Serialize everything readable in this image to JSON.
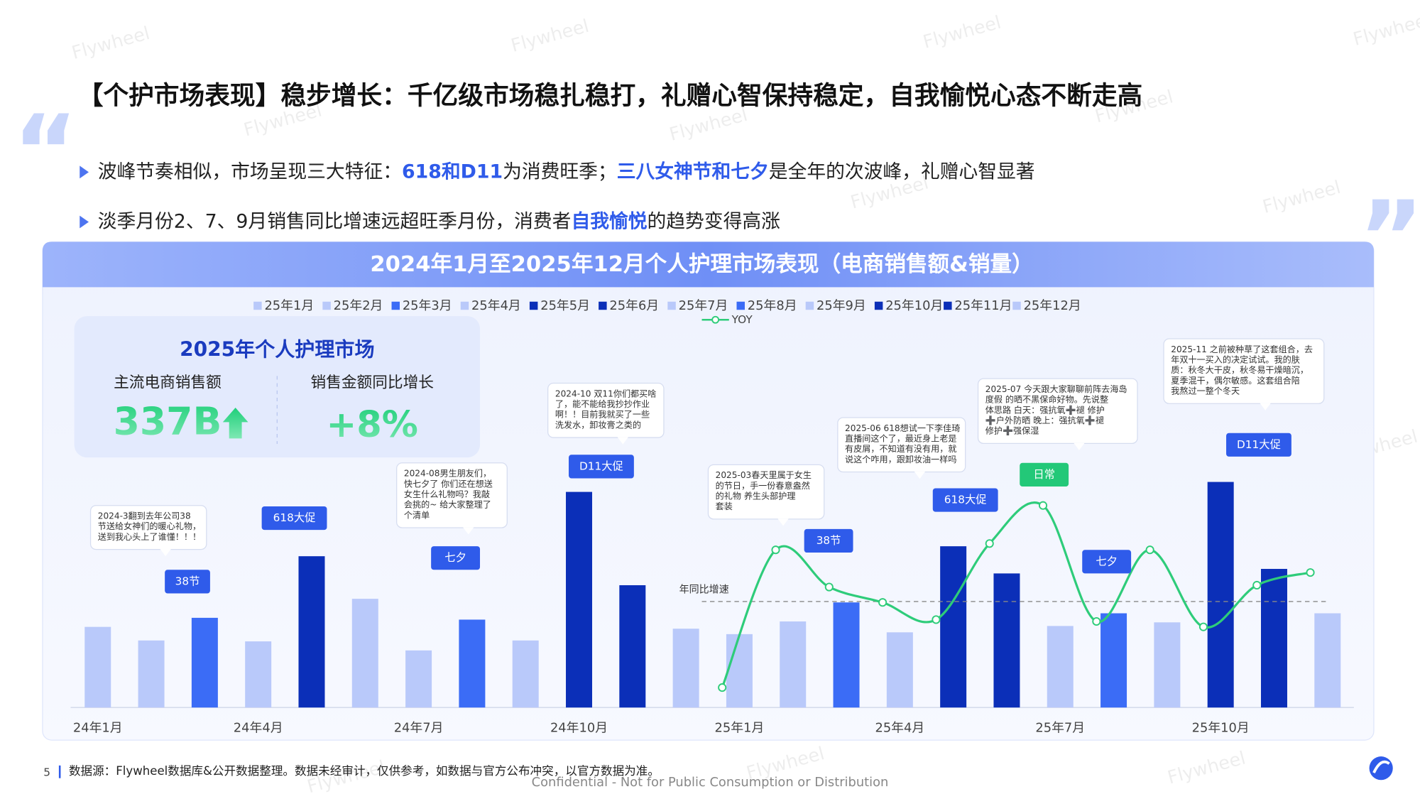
{
  "header": {
    "title": "【个护市场表现】稳步增长：千亿级市场稳扎稳打，礼赠心智保持稳定，自我愉悦心态不断走高"
  },
  "bullets": [
    [
      {
        "text": "波峰节奏相似，市场呈现三大特征："
      },
      {
        "text": "618和D11",
        "highlight": true
      },
      {
        "text": "为消费旺季；"
      },
      {
        "text": "三八女神节和七夕",
        "highlight": true
      },
      {
        "text": "是全年的次波峰，礼赠心智显著"
      }
    ],
    [
      {
        "text": "淡季月份2、7、9月销售同比增速远超旺季月份，消费者"
      },
      {
        "text": "自我愉悦",
        "highlight": true
      },
      {
        "text": "的趋势变得高涨"
      }
    ]
  ],
  "watermark": "Flywheel",
  "kpi": {
    "title": "2025年个人护理市场",
    "label1": "主流电商销售额",
    "value1": "337B",
    "label2": "销售金额同比增长",
    "value2": "+8%"
  },
  "chart_data": {
    "type": "bar",
    "title": "2024年1月至2025年12月个人护理市场表现（电商销售额&销量）",
    "categories": [
      "24年1月",
      null,
      null,
      "24年4月",
      null,
      null,
      "24年7月",
      null,
      null,
      "24年10月",
      null,
      null,
      "25年1月",
      null,
      null,
      "25年4月",
      null,
      null,
      "25年7月",
      null,
      null,
      "25年10月",
      null,
      null
    ],
    "values": [
      89,
      74,
      99,
      73,
      167,
      120,
      63,
      97,
      74,
      238,
      135,
      87,
      81,
      95,
      116,
      83,
      178,
      148,
      90,
      104,
      94,
      249,
      153,
      104
    ],
    "colors": [
      "#b9c9fa",
      "#b9c9fa",
      "#3b6cf6",
      "#b9c9fa",
      "#0b2fb8",
      "#b9c9fa",
      "#b9c9fa",
      "#3b6cf6",
      "#b9c9fa",
      "#0b2fb8",
      "#0b2fb8",
      "#b9c9fa",
      "#b9c9fa",
      "#b9c9fa",
      "#3b6cf6",
      "#b9c9fa",
      "#0b2fb8",
      "#0b2fb8",
      "#b9c9fa",
      "#3b6cf6",
      "#b9c9fa",
      "#0b2fb8",
      "#0b2fb8",
      "#b9c9fa"
    ],
    "ylim": [
      0,
      300
    ],
    "legend": [
      {
        "name": "25年1月",
        "color": "#b9c9fa"
      },
      {
        "name": "25年2月",
        "color": "#b9c9fa"
      },
      {
        "name": "25年3月",
        "color": "#3b6cf6"
      },
      {
        "name": "25年4月",
        "color": "#b9c9fa"
      },
      {
        "name": "25年5月",
        "color": "#0b2fb8"
      },
      {
        "name": "25年6月",
        "color": "#0b2fb8"
      },
      {
        "name": "25年7月",
        "color": "#b9c9fa"
      },
      {
        "name": "25年8月",
        "color": "#3b6cf6"
      },
      {
        "name": "25年9月",
        "color": "#b9c9fa"
      },
      {
        "name": "25年10月",
        "color": "#0b2fb8"
      },
      {
        "name": "25年11月",
        "color": "#0b2fb8"
      },
      {
        "name": "25年12月",
        "color": "#b9c9fa"
      }
    ],
    "line": {
      "name": "YOY",
      "color": "#2ecc7a",
      "axis": "y2",
      "values": [
        null,
        null,
        null,
        null,
        null,
        null,
        null,
        null,
        null,
        null,
        null,
        null,
        22,
        174,
        133,
        116,
        97,
        181,
        223,
        95,
        174,
        89,
        135,
        149
      ]
    },
    "y2lim": [
      0,
      300
    ],
    "reference_line": {
      "label": "年同比增速",
      "value": 117
    },
    "tags": [
      "38节",
      "618大促",
      "七夕",
      "D11大促",
      "38节",
      "618大促",
      "日常",
      "七夕",
      "D11大促"
    ],
    "comments": [
      [
        "2024-3翻到去年公司38",
        "节送给女神们的暖心礼物，",
        "送到我心头上了谁懂！！！"
      ],
      [
        "2024-08男生朋友们，",
        "快七夕了 你们还在想送",
        "女生什么礼物吗？我敲",
        "会挑的~ 给大家整理了",
        "个清单"
      ],
      [
        "2024-10 双11你们都买啥",
        "了，能不能给我抄抄作业",
        "啊！！目前我就买了一些",
        "洗发水，卸妆膏之类的"
      ],
      [
        "2025-03春天里属于女生",
        "的节日，手一份春意盎然",
        "的礼物 养生头部护理",
        "套装"
      ],
      [
        "2025-06 618想试一下李佳琦",
        "直播间这个了，最近身上老是",
        "有皮屑，不知道有没有用，就",
        "说这个咋用，跟卸妆油一样吗"
      ],
      [
        "2025-07 今天跟大家聊聊前阵去海岛",
        "度假 的晒不黑保命好物。先说整",
        "体思路 白天：强抗氧➕褪 修护",
        "➕户外防晒 晚上：强抗氧➕褪",
        "修护➕强保湿"
      ],
      [
        "2025-11 之前被种草了这套组合，去",
        "年双十一买入的决定试试。我的肤",
        "质：秋冬大干皮，秋冬易干燥暗沉，",
        "夏季混干，偶尔敏感。这套组合陪",
        "我熬过一整个冬天"
      ]
    ]
  },
  "footer": {
    "page": "5",
    "source": "数据源：Flywheel数据库&公开数据整理。数据未经审计，仅供参考，如数据与官方公布冲突，以官方数据为准。",
    "confidential": "Confidential - Not for Public Consumption or Distribution"
  }
}
